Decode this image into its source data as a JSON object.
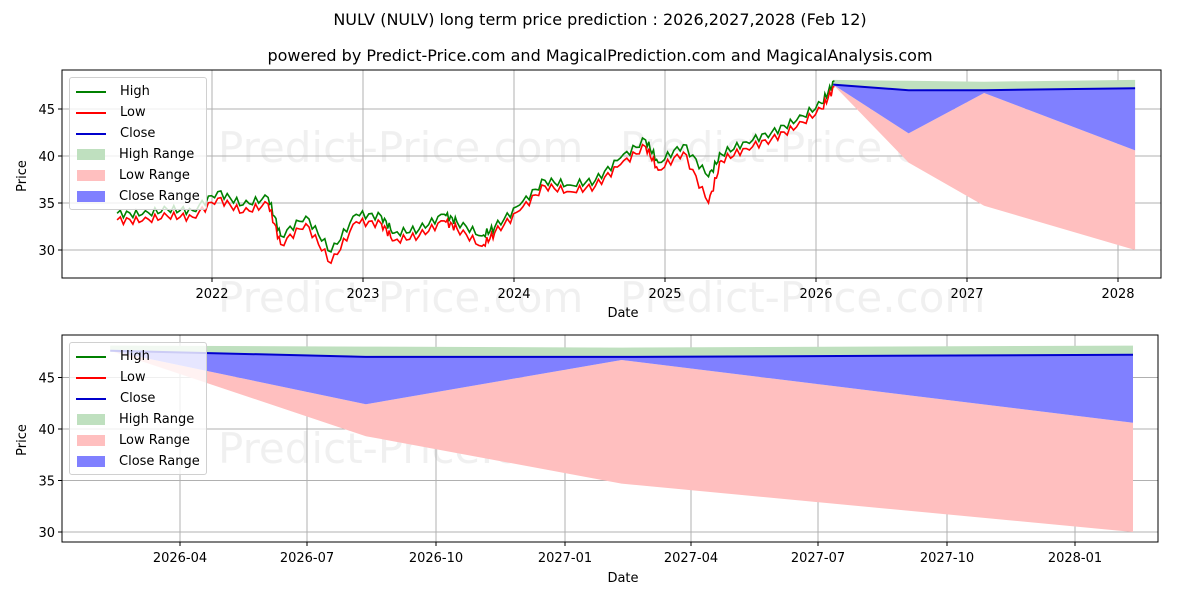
{
  "header": {
    "title": "NULV (NULV) long term price prediction : 2026,2027,2028 (Feb 12)",
    "subtitle": "powered by Predict-Price.com and MagicalPrediction.com and MagicalAnalysis.com"
  },
  "watermark": "Predict-Price.com",
  "legend": {
    "items": [
      {
        "label": "High",
        "kind": "line",
        "color": "#008000"
      },
      {
        "label": "Low",
        "kind": "line",
        "color": "#ff0000"
      },
      {
        "label": "Close",
        "kind": "line",
        "color": "#0000cc"
      },
      {
        "label": "High Range",
        "kind": "patch",
        "color": "#bfe0bf"
      },
      {
        "label": "Low Range",
        "kind": "patch",
        "color": "#ffbfbf"
      },
      {
        "label": "Close Range",
        "kind": "patch",
        "color": "#8080ff"
      }
    ]
  },
  "colors": {
    "high": "#008000",
    "low": "#ff0000",
    "close": "#0000cc",
    "high_range": "#bfe0bf",
    "low_range": "#ffbfbf",
    "close_range": "#8080ff",
    "grid": "#b0b0b0"
  },
  "chart_data": [
    {
      "type": "line",
      "title": "NULV (NULV) long term price prediction : 2026,2027,2028 (Feb 12)",
      "subtitle": "powered by Predict-Price.com and MagicalPrediction.com and MagicalAnalysis.com",
      "xlabel": "Date",
      "ylabel": "Price",
      "x_ticks": [
        "2022",
        "2023",
        "2024",
        "2025",
        "2026",
        "2027",
        "2028"
      ],
      "y_ticks": [
        30,
        35,
        40,
        45
      ],
      "ylim": [
        27,
        49
      ],
      "grid": true,
      "legend_position": "upper left",
      "history": {
        "x": [
          "2021-05",
          "2021-07",
          "2021-09",
          "2021-11",
          "2022-01",
          "2022-03",
          "2022-05",
          "2022-06",
          "2022-08",
          "2022-10",
          "2022-12",
          "2023-02",
          "2023-03",
          "2023-05",
          "2023-07",
          "2023-08",
          "2023-10",
          "2023-11",
          "2024-01",
          "2024-03",
          "2024-05",
          "2024-07",
          "2024-09",
          "2024-11",
          "2024-12",
          "2025-02",
          "2025-04",
          "2025-05",
          "2025-07",
          "2025-09",
          "2025-11",
          "2026-01",
          "2026-02"
        ],
        "series": [
          {
            "name": "High",
            "values": [
              33.9,
              33.8,
              34.3,
              34.2,
              36.2,
              34.8,
              35.6,
              31.5,
              33.6,
              29.8,
              33.8,
              33.6,
              31.8,
              32.2,
              33.8,
              33.0,
              31.5,
              32.4,
              34.8,
              37.4,
              36.9,
              37.4,
              39.8,
              41.7,
              39.3,
              41.2,
              37.8,
              40.2,
              41.5,
              42.5,
              43.8,
              45.6,
              48.0
            ]
          },
          {
            "name": "Low",
            "values": [
              33.2,
              33.1,
              33.6,
              33.5,
              35.5,
              34.0,
              34.9,
              30.6,
              32.8,
              28.6,
              33.0,
              32.8,
              31.0,
              31.5,
              33.1,
              32.3,
              30.4,
              31.8,
              34.2,
              36.8,
              36.2,
              36.8,
              39.1,
              41.0,
              38.5,
              40.4,
              35.0,
              39.5,
              40.8,
              41.8,
              43.1,
              45.0,
              47.4
            ]
          },
          {
            "name": "Close",
            "values": [
              33.5,
              33.5,
              34.0,
              33.9,
              35.9,
              34.4,
              35.3,
              31.0,
              33.2,
              29.2,
              33.4,
              33.2,
              31.4,
              31.9,
              33.5,
              32.7,
              30.9,
              32.1,
              34.5,
              37.1,
              36.6,
              37.1,
              39.5,
              41.4,
              38.9,
              40.8,
              36.8,
              39.9,
              41.2,
              42.2,
              43.5,
              45.3,
              47.6
            ]
          }
        ]
      },
      "forecast": {
        "x": [
          "2026-02-12",
          "2026-08-12",
          "2027-02-12",
          "2028-02-12"
        ],
        "series": [
          {
            "name": "High Range",
            "upper": [
              48.1,
              48.0,
              47.9,
              48.1
            ],
            "lower": [
              47.6,
              47.1,
              47.0,
              47.2
            ]
          },
          {
            "name": "Close",
            "values": [
              47.6,
              47.0,
              47.0,
              47.2
            ]
          },
          {
            "name": "Close Range",
            "upper": [
              47.6,
              47.0,
              47.0,
              47.2
            ],
            "lower": [
              47.6,
              42.4,
              46.7,
              40.6
            ]
          },
          {
            "name": "Low Range",
            "upper": [
              47.6,
              42.4,
              46.7,
              40.6
            ],
            "lower": [
              47.6,
              39.3,
              34.7,
              30.0
            ]
          }
        ]
      }
    },
    {
      "type": "area",
      "xlabel": "Date",
      "ylabel": "Price",
      "x_ticks": [
        "2026-04",
        "2026-07",
        "2026-10",
        "2027-01",
        "2027-04",
        "2027-07",
        "2027-10",
        "2028-01"
      ],
      "y_ticks": [
        30,
        35,
        40,
        45
      ],
      "ylim": [
        29,
        49
      ],
      "grid": true,
      "legend_position": "upper left",
      "x": [
        "2026-02-12",
        "2026-08-12",
        "2027-02-12",
        "2028-02-12"
      ],
      "series": [
        {
          "name": "High Range",
          "upper": [
            48.1,
            48.0,
            47.9,
            48.1
          ],
          "lower": [
            47.6,
            47.1,
            47.0,
            47.2
          ]
        },
        {
          "name": "Close",
          "values": [
            47.6,
            47.0,
            47.0,
            47.2
          ]
        },
        {
          "name": "Close Range",
          "upper": [
            47.6,
            47.0,
            47.0,
            47.2
          ],
          "lower": [
            47.6,
            42.4,
            46.7,
            40.6
          ]
        },
        {
          "name": "Low Range",
          "upper": [
            47.6,
            42.4,
            46.7,
            40.6
          ],
          "lower": [
            47.6,
            39.3,
            34.7,
            30.0
          ]
        }
      ]
    }
  ],
  "top_chart": {
    "ylabel": "Price",
    "xlabel": "Date",
    "x_ticks": [
      "2022",
      "2023",
      "2024",
      "2025",
      "2026",
      "2027",
      "2028"
    ],
    "y_ticks": [
      "45",
      "40",
      "35",
      "30"
    ]
  },
  "bottom_chart": {
    "ylabel": "Price",
    "xlabel": "Date",
    "x_ticks": [
      "2026-04",
      "2026-07",
      "2026-10",
      "2027-01",
      "2027-04",
      "2027-07",
      "2027-10",
      "2028-01"
    ],
    "y_ticks": [
      "45",
      "40",
      "35",
      "30"
    ]
  }
}
